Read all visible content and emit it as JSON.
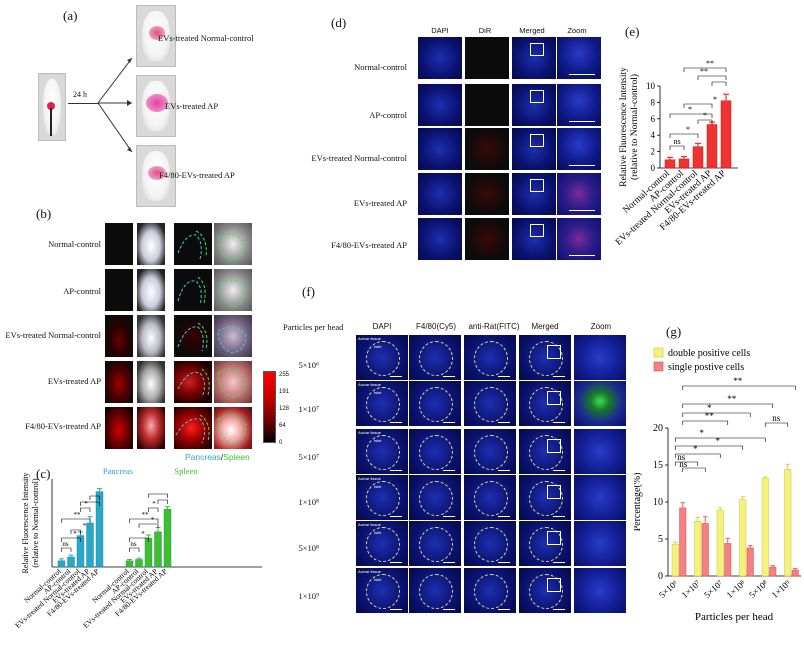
{
  "panels": {
    "a": {
      "label": "(a)",
      "arrow_time": "24 h",
      "groups": [
        "EVs-treated Normal-control",
        "EVs-treated AP",
        "F4/80-EVs-treated AP"
      ]
    },
    "b": {
      "label": "(b)",
      "rows": [
        "Normal-control",
        "AP-control",
        "EVs-treated Normal-control",
        "EVs-treated AP",
        "F4/80-EVs-treated AP"
      ],
      "caption_pancreas": "Pancreas",
      "caption_sep": "/",
      "caption_spleen": "Spleen",
      "colorbar_ticks": [
        "255",
        "191",
        "128",
        "64",
        "0"
      ]
    },
    "c": {
      "label": "(c)",
      "legend_pancreas": "Pancreas",
      "legend_spleen": "Spleen"
    },
    "d": {
      "label": "(d)",
      "columns": [
        "DAPI",
        "DiR",
        "Merged",
        "Zoom"
      ],
      "rows": [
        "Normal-control",
        "AP-control",
        "EVs-treated Normal-control",
        "EVs-treated AP",
        "F4/80-EVs-treated AP"
      ]
    },
    "e": {
      "label": "(e)"
    },
    "f": {
      "label": "(f)",
      "corner": "Particles per head",
      "columns": [
        "DAPI",
        "F4/80(Cy5)",
        "anti-Rat(FITC)",
        "Merged",
        "Zoom"
      ],
      "rows": [
        "5×10⁶",
        "1×10⁷",
        "5×10⁷",
        "1×10⁸",
        "5×10⁸",
        "1×10⁹"
      ],
      "acinar": "Acinar tissue",
      "islet": "Islet"
    },
    "g": {
      "label": "(g)"
    }
  },
  "chart_data": [
    {
      "id": "c",
      "type": "bar",
      "ylabel": "Relative Fluorescence Intensity\n(relative to Normal-control)",
      "categories": [
        "Normal-control",
        "AP-control",
        "EVs-treated Normal-control",
        "EVs-treated AP",
        "F4/80-EVs-treated AP"
      ],
      "series": [
        {
          "name": "Pancreas",
          "color": "#2aa6c7",
          "values": [
            1.0,
            1.6,
            5.0,
            7.0,
            12.0
          ],
          "errors": [
            0.3,
            0.3,
            0.6,
            1.0,
            0.5
          ]
        },
        {
          "name": "Spleen",
          "color": "#3fbf2c",
          "values": [
            1.0,
            1.2,
            4.6,
            5.6,
            9.2
          ],
          "errors": [
            0.2,
            0.2,
            0.5,
            0.7,
            0.4
          ]
        }
      ],
      "ylim": [
        0,
        14
      ],
      "annotations": [
        "ns",
        "*",
        "**",
        "*",
        "*",
        "ns",
        "*",
        "**",
        "*",
        "*"
      ]
    },
    {
      "id": "e",
      "type": "bar",
      "ylabel": "Relative Fluorescence Intensity\n(relative to Normal-control)",
      "categories": [
        "Normal-control",
        "AP-control",
        "EVs-treated Normal-control",
        "EVs-treated AP",
        "F4/80-EVs-treated AP"
      ],
      "series": [
        {
          "color": "#ee3333",
          "values": [
            1.0,
            1.1,
            2.6,
            5.3,
            8.2
          ],
          "errors": [
            0.3,
            0.3,
            0.4,
            0.3,
            0.8
          ]
        }
      ],
      "yticks": [
        "0",
        "2",
        "4",
        "6",
        "8",
        "10"
      ],
      "ylim": [
        0,
        10
      ],
      "annotations": [
        "ns",
        "*",
        "*",
        "*",
        "*",
        "**",
        "**"
      ]
    },
    {
      "id": "g",
      "type": "bar",
      "xlabel": "Particles per head",
      "ylabel": "Percentage(%)",
      "categories": [
        "5×10⁶",
        "1×10⁷",
        "5×10⁷",
        "1×10⁸",
        "5×10⁸",
        "1×10⁹"
      ],
      "series": [
        {
          "name": "double positive cells",
          "color": "#f4f27a",
          "values": [
            4.3,
            7.4,
            8.9,
            10.3,
            13.2,
            14.4
          ],
          "errors": [
            0.3,
            0.5,
            0.3,
            0.4,
            0.2,
            0.7
          ]
        },
        {
          "name": "single postive cells",
          "color": "#f58080",
          "values": [
            9.2,
            7.1,
            4.4,
            3.8,
            1.2,
            0.8
          ],
          "errors": [
            0.7,
            0.9,
            0.7,
            0.3,
            0.2,
            0.2
          ]
        }
      ],
      "yticks": [
        "0",
        "5",
        "10",
        "15",
        "20"
      ],
      "ylim": [
        0,
        20
      ],
      "annotations": [
        "ns",
        "ns",
        "*",
        "*",
        "*",
        "**",
        "*",
        "**",
        "ns"
      ]
    }
  ]
}
